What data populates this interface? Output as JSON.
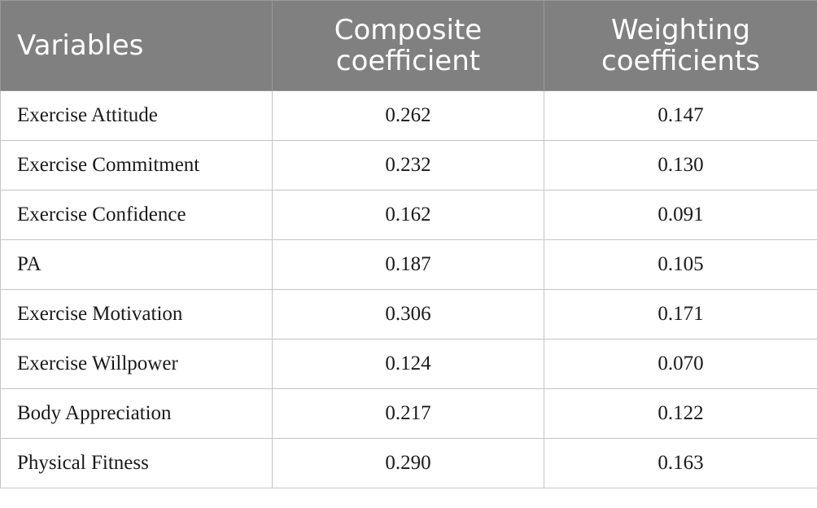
{
  "table": {
    "headers": {
      "variables": "Variables",
      "composite_line1": "Composite",
      "composite_line2": "coefficient",
      "weighting_line1": "Weighting",
      "weighting_line2": "coefficients"
    },
    "rows": [
      {
        "variable": "Exercise Attitude",
        "composite": "0.262",
        "weighting": "0.147"
      },
      {
        "variable": "Exercise Commitment",
        "composite": "0.232",
        "weighting": "0.130"
      },
      {
        "variable": "Exercise Confidence",
        "composite": "0.162",
        "weighting": "0.091"
      },
      {
        "variable": "PA",
        "composite": "0.187",
        "weighting": "0.105"
      },
      {
        "variable": "Exercise Motivation",
        "composite": "0.306",
        "weighting": "0.171"
      },
      {
        "variable": "Exercise Willpower",
        "composite": "0.124",
        "weighting": "0.070"
      },
      {
        "variable": "Body Appreciation",
        "composite": "0.217",
        "weighting": "0.122"
      },
      {
        "variable": "Physical Fitness",
        "composite": "0.290",
        "weighting": "0.163"
      }
    ]
  },
  "colors": {
    "header_bg": "#808080",
    "header_text": "#ffffff",
    "border": "#c4c4c4"
  }
}
